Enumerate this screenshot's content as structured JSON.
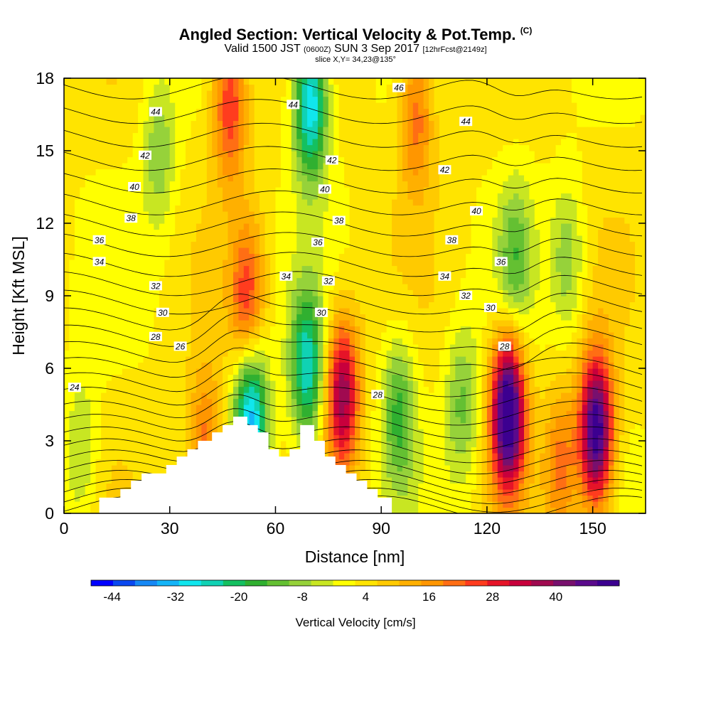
{
  "titles": {
    "main": "Angled Section: Vertical Velocity & Pot.Temp.",
    "copyright": "(C)",
    "valid_prefix": "Valid 1500 JST",
    "valid_z": "(0600Z)",
    "valid_date": "SUN 3 Sep 2017",
    "forecast": "[12hrFcst@2149z]",
    "slice": "slice X,Y= 34,23@135°"
  },
  "chart_data": {
    "type": "heatmap",
    "xlabel": "Distance [nm]",
    "ylabel": "Height [Kft MSL]",
    "xlim": [
      0,
      165
    ],
    "ylim": [
      0,
      18
    ],
    "x_ticks": [
      0,
      30,
      60,
      90,
      120,
      150
    ],
    "y_ticks": [
      0,
      3,
      6,
      9,
      12,
      15,
      18
    ],
    "colorbar": {
      "label": "Vertical Velocity [cm/s]",
      "min": -48,
      "max": 52,
      "step": 4,
      "tick_values": [
        -44,
        -32,
        -20,
        -8,
        4,
        16,
        28,
        40
      ],
      "tick_labels": [
        "-44",
        "-32",
        "-20",
        "-8",
        "4",
        "16",
        "28",
        "40"
      ],
      "colors": [
        "#0000ff",
        "#0a48f0",
        "#1688f5",
        "#14b4f8",
        "#10e6ee",
        "#10d2b4",
        "#14c060",
        "#30b030",
        "#64c032",
        "#96d23a",
        "#c8e622",
        "#ffff00",
        "#ffe400",
        "#ffca00",
        "#ffb000",
        "#ff9600",
        "#ff6e14",
        "#ff3c1e",
        "#e61428",
        "#c8003c",
        "#a00a50",
        "#78106e",
        "#5a0a8c",
        "#3c0090"
      ]
    },
    "terrain_steps": [
      [
        10,
        0.3
      ],
      [
        10,
        0.65
      ],
      [
        16,
        0.65
      ],
      [
        16,
        1
      ],
      [
        19,
        1
      ],
      [
        19,
        1.35
      ],
      [
        22,
        1.35
      ],
      [
        22,
        1.65
      ],
      [
        29,
        1.65
      ],
      [
        29,
        2
      ],
      [
        32,
        2
      ],
      [
        32,
        2.35
      ],
      [
        35,
        2.35
      ],
      [
        35,
        2.65
      ],
      [
        38,
        2.65
      ],
      [
        38,
        3
      ],
      [
        42,
        3
      ],
      [
        42,
        3.35
      ],
      [
        45,
        3.35
      ],
      [
        45,
        3.65
      ],
      [
        48,
        3.65
      ],
      [
        48,
        4
      ],
      [
        52,
        4
      ],
      [
        52,
        3.65
      ],
      [
        55,
        3.65
      ],
      [
        55,
        3.35
      ],
      [
        58,
        3.35
      ],
      [
        58,
        2.65
      ],
      [
        61,
        2.65
      ],
      [
        61,
        2.35
      ],
      [
        64,
        2.35
      ],
      [
        64,
        2.65
      ],
      [
        67,
        2.65
      ],
      [
        67,
        3.65
      ],
      [
        71,
        3.65
      ],
      [
        71,
        3
      ],
      [
        74,
        3
      ],
      [
        74,
        2.35
      ],
      [
        77,
        2.35
      ],
      [
        77,
        2
      ],
      [
        80,
        2
      ],
      [
        80,
        1.65
      ],
      [
        83,
        1.65
      ],
      [
        83,
        1.35
      ],
      [
        86,
        1.35
      ],
      [
        86,
        1
      ],
      [
        89,
        1
      ],
      [
        89,
        0.65
      ],
      [
        93,
        0.65
      ],
      [
        93,
        0.3
      ]
    ],
    "updrafts": [
      {
        "x": 126,
        "z": 4.2,
        "peak": 52
      },
      {
        "x": 151,
        "z": 3.4,
        "peak": 48
      },
      {
        "x": 79,
        "z": 5.0,
        "peak": 34
      },
      {
        "x": 52,
        "z": 8.8,
        "peak": 22
      },
      {
        "x": 100,
        "z": 16.5,
        "peak": 18
      },
      {
        "x": 47,
        "z": 17.0,
        "peak": 24
      },
      {
        "x": 40,
        "z": 2.8,
        "peak": 18
      },
      {
        "x": 141,
        "z": 2.0,
        "peak": 16
      }
    ],
    "downdrafts": [
      {
        "x": 53,
        "z": 4.0,
        "peak": -36
      },
      {
        "x": 69,
        "z": 6.0,
        "peak": -28
      },
      {
        "x": 70,
        "z": 17.0,
        "peak": -34
      },
      {
        "x": 95,
        "z": 4.2,
        "peak": -18
      },
      {
        "x": 113,
        "z": 4.5,
        "peak": -14
      },
      {
        "x": 128,
        "z": 10.5,
        "peak": -14
      },
      {
        "x": 143,
        "z": 10.5,
        "peak": -12
      },
      {
        "x": 5,
        "z": 2.5,
        "peak": -10
      },
      {
        "x": 27,
        "z": 15.0,
        "peak": -12
      }
    ],
    "isentrope_labels": [
      {
        "text": "46",
        "x": 95,
        "z": 17.6
      },
      {
        "text": "44",
        "x": 26,
        "z": 16.6
      },
      {
        "text": "44",
        "x": 65,
        "z": 16.9
      },
      {
        "text": "44",
        "x": 114,
        "z": 16.2
      },
      {
        "text": "42",
        "x": 23,
        "z": 14.8
      },
      {
        "text": "42",
        "x": 76,
        "z": 14.6
      },
      {
        "text": "42",
        "x": 108,
        "z": 14.2
      },
      {
        "text": "40",
        "x": 20,
        "z": 13.5
      },
      {
        "text": "40",
        "x": 74,
        "z": 13.4
      },
      {
        "text": "40",
        "x": 117,
        "z": 12.5
      },
      {
        "text": "38",
        "x": 19,
        "z": 12.2
      },
      {
        "text": "38",
        "x": 78,
        "z": 12.1
      },
      {
        "text": "38",
        "x": 110,
        "z": 11.3
      },
      {
        "text": "36",
        "x": 10,
        "z": 11.3
      },
      {
        "text": "36",
        "x": 72,
        "z": 11.2
      },
      {
        "text": "36",
        "x": 124,
        "z": 10.4
      },
      {
        "text": "34",
        "x": 10,
        "z": 10.4
      },
      {
        "text": "34",
        "x": 63,
        "z": 9.8
      },
      {
        "text": "34",
        "x": 108,
        "z": 9.8
      },
      {
        "text": "32",
        "x": 26,
        "z": 9.4
      },
      {
        "text": "32",
        "x": 75,
        "z": 9.6
      },
      {
        "text": "32",
        "x": 114,
        "z": 9.0
      },
      {
        "text": "30",
        "x": 28,
        "z": 8.3
      },
      {
        "text": "30",
        "x": 73,
        "z": 8.3
      },
      {
        "text": "30",
        "x": 121,
        "z": 8.5
      },
      {
        "text": "28",
        "x": 26,
        "z": 7.3
      },
      {
        "text": "28",
        "x": 89,
        "z": 4.9
      },
      {
        "text": "28",
        "x": 125,
        "z": 6.9
      },
      {
        "text": "26",
        "x": 33,
        "z": 6.9
      },
      {
        "text": "24",
        "x": 3,
        "z": 5.2
      }
    ]
  }
}
